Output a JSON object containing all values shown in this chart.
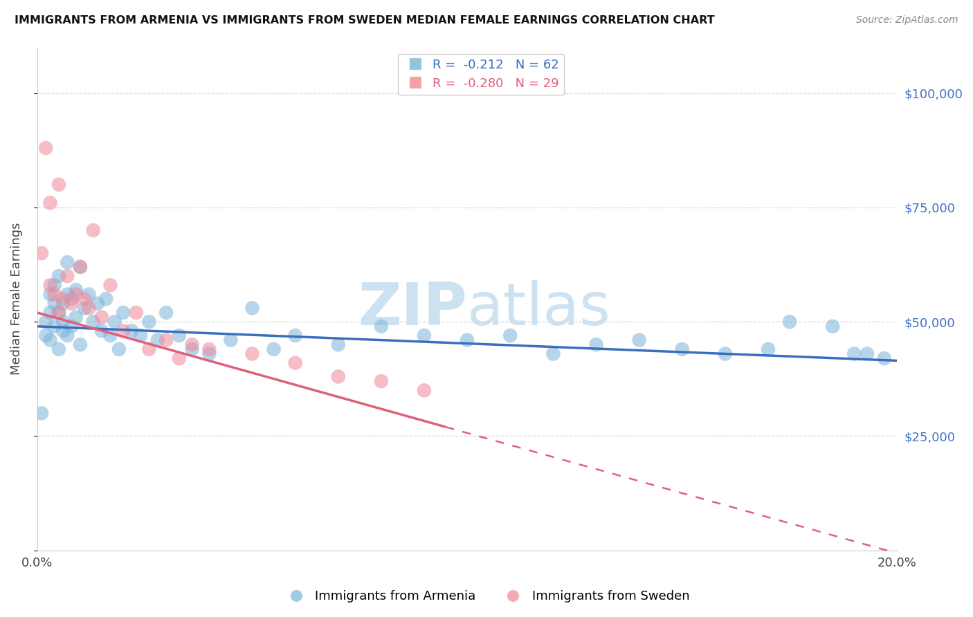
{
  "title": "IMMIGRANTS FROM ARMENIA VS IMMIGRANTS FROM SWEDEN MEDIAN FEMALE EARNINGS CORRELATION CHART",
  "source": "Source: ZipAtlas.com",
  "ylabel": "Median Female Earnings",
  "xlim": [
    0.0,
    0.2
  ],
  "ylim": [
    0,
    110000
  ],
  "yticks": [
    0,
    25000,
    50000,
    75000,
    100000
  ],
  "ytick_labels_right": [
    "",
    "$25,000",
    "$50,000",
    "$75,000",
    "$100,000"
  ],
  "xticks": [
    0.0,
    0.05,
    0.1,
    0.15,
    0.2
  ],
  "xtick_labels": [
    "0.0%",
    "",
    "",
    "",
    "20.0%"
  ],
  "armenia_color": "#7ab3d9",
  "sweden_color": "#f08898",
  "armenia_line_color": "#3a6fbe",
  "sweden_line_color": "#e0607a",
  "background_color": "#ffffff",
  "grid_color": "#d8d8d8",
  "watermark_color": "#c8dff0",
  "right_tick_color": "#4472c4",
  "armenia_x": [
    0.001,
    0.002,
    0.002,
    0.003,
    0.003,
    0.003,
    0.004,
    0.004,
    0.004,
    0.005,
    0.005,
    0.005,
    0.006,
    0.006,
    0.006,
    0.007,
    0.007,
    0.007,
    0.008,
    0.008,
    0.009,
    0.009,
    0.01,
    0.01,
    0.011,
    0.012,
    0.013,
    0.014,
    0.015,
    0.016,
    0.017,
    0.018,
    0.019,
    0.02,
    0.022,
    0.024,
    0.026,
    0.028,
    0.03,
    0.033,
    0.036,
    0.04,
    0.045,
    0.05,
    0.055,
    0.06,
    0.07,
    0.08,
    0.09,
    0.1,
    0.11,
    0.12,
    0.13,
    0.14,
    0.15,
    0.16,
    0.17,
    0.175,
    0.185,
    0.19,
    0.193,
    0.197
  ],
  "armenia_y": [
    30000,
    50000,
    47000,
    52000,
    46000,
    56000,
    54000,
    49000,
    58000,
    44000,
    52000,
    60000,
    48000,
    54000,
    50000,
    63000,
    56000,
    47000,
    55000,
    49000,
    57000,
    51000,
    62000,
    45000,
    53000,
    56000,
    50000,
    54000,
    48000,
    55000,
    47000,
    50000,
    44000,
    52000,
    48000,
    47000,
    50000,
    46000,
    52000,
    47000,
    44000,
    43000,
    46000,
    53000,
    44000,
    47000,
    45000,
    49000,
    47000,
    46000,
    47000,
    43000,
    45000,
    46000,
    44000,
    43000,
    44000,
    50000,
    49000,
    43000,
    43000,
    42000
  ],
  "sweden_x": [
    0.001,
    0.002,
    0.003,
    0.003,
    0.004,
    0.005,
    0.005,
    0.006,
    0.007,
    0.008,
    0.009,
    0.01,
    0.011,
    0.012,
    0.013,
    0.015,
    0.017,
    0.02,
    0.023,
    0.026,
    0.03,
    0.033,
    0.036,
    0.04,
    0.05,
    0.06,
    0.07,
    0.08,
    0.09
  ],
  "sweden_y": [
    65000,
    88000,
    58000,
    76000,
    56000,
    80000,
    52000,
    55000,
    60000,
    54000,
    56000,
    62000,
    55000,
    53000,
    70000,
    51000,
    58000,
    48000,
    52000,
    44000,
    46000,
    42000,
    45000,
    44000,
    43000,
    41000,
    38000,
    37000,
    35000
  ],
  "arm_line_x0": 0.0,
  "arm_line_x1": 0.2,
  "arm_line_y0": 49000,
  "arm_line_y1": 41500,
  "swe_line_solid_x0": 0.0,
  "swe_line_solid_x1": 0.095,
  "swe_line_y0": 52000,
  "swe_line_y1": 27000,
  "swe_line_dash_x0": 0.095,
  "swe_line_dash_x1": 0.2,
  "swe_line_yend": 9000
}
